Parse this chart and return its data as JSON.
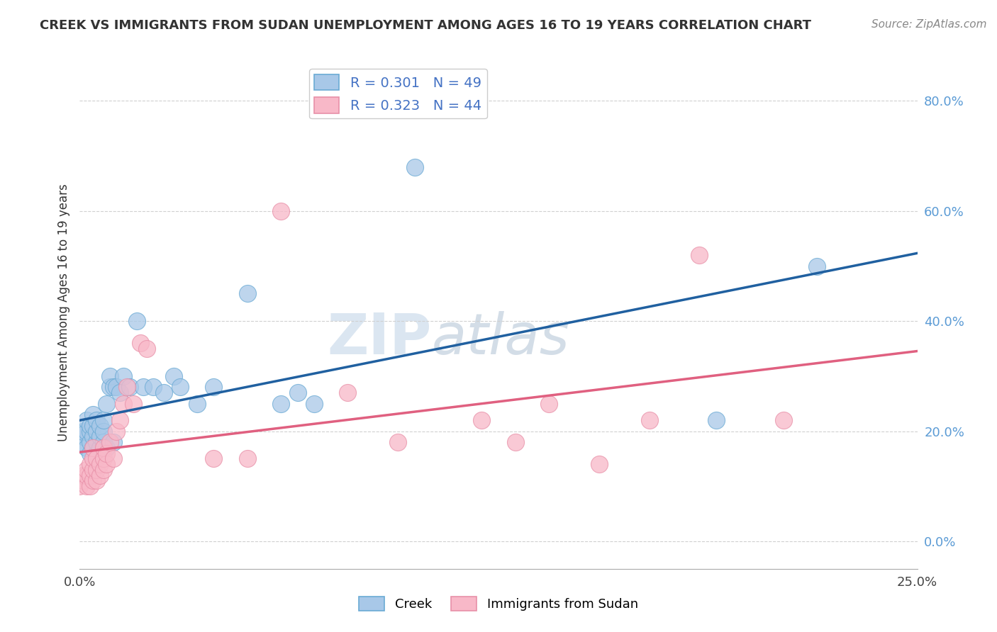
{
  "title": "CREEK VS IMMIGRANTS FROM SUDAN UNEMPLOYMENT AMONG AGES 16 TO 19 YEARS CORRELATION CHART",
  "source": "Source: ZipAtlas.com",
  "ylabel": "Unemployment Among Ages 16 to 19 years",
  "xlim": [
    0.0,
    0.25
  ],
  "ylim": [
    -0.05,
    0.88
  ],
  "yticks": [
    0.0,
    0.2,
    0.4,
    0.6,
    0.8
  ],
  "ytick_labels": [
    "0.0%",
    "20.0%",
    "40.0%",
    "60.0%",
    "80.0%"
  ],
  "xtick_labels_show": [
    "0.0%",
    "25.0%"
  ],
  "creek_color": "#a8c8e8",
  "creek_edge_color": "#6aaad4",
  "sudan_color": "#f8b8c8",
  "sudan_edge_color": "#e890a8",
  "creek_line_color": "#2060a0",
  "sudan_line_color": "#e06080",
  "sudan_dash_color": "#e0a0b0",
  "legend_creek_color": "#a8c8e8",
  "legend_sudan_color": "#f8b8c8",
  "watermark": "ZIPatlas",
  "creek_x": [
    0.0,
    0.001,
    0.001,
    0.002,
    0.002,
    0.002,
    0.003,
    0.003,
    0.003,
    0.003,
    0.004,
    0.004,
    0.004,
    0.004,
    0.005,
    0.005,
    0.005,
    0.005,
    0.006,
    0.006,
    0.006,
    0.007,
    0.007,
    0.007,
    0.008,
    0.008,
    0.009,
    0.009,
    0.01,
    0.01,
    0.011,
    0.012,
    0.013,
    0.015,
    0.017,
    0.019,
    0.022,
    0.025,
    0.028,
    0.03,
    0.035,
    0.04,
    0.05,
    0.06,
    0.065,
    0.07,
    0.1,
    0.19,
    0.22
  ],
  "creek_y": [
    0.18,
    0.19,
    0.2,
    0.17,
    0.2,
    0.22,
    0.16,
    0.18,
    0.2,
    0.21,
    0.17,
    0.19,
    0.21,
    0.23,
    0.16,
    0.18,
    0.2,
    0.22,
    0.17,
    0.19,
    0.21,
    0.18,
    0.2,
    0.22,
    0.17,
    0.25,
    0.28,
    0.3,
    0.18,
    0.28,
    0.28,
    0.27,
    0.3,
    0.28,
    0.4,
    0.28,
    0.28,
    0.27,
    0.3,
    0.28,
    0.25,
    0.28,
    0.45,
    0.25,
    0.27,
    0.25,
    0.68,
    0.22,
    0.5
  ],
  "sudan_x": [
    0.0,
    0.001,
    0.001,
    0.002,
    0.002,
    0.002,
    0.003,
    0.003,
    0.003,
    0.004,
    0.004,
    0.004,
    0.004,
    0.005,
    0.005,
    0.005,
    0.006,
    0.006,
    0.007,
    0.007,
    0.007,
    0.008,
    0.008,
    0.009,
    0.01,
    0.011,
    0.012,
    0.013,
    0.014,
    0.016,
    0.018,
    0.02,
    0.04,
    0.05,
    0.06,
    0.08,
    0.095,
    0.12,
    0.13,
    0.14,
    0.155,
    0.17,
    0.185,
    0.21
  ],
  "sudan_y": [
    0.1,
    0.11,
    0.12,
    0.1,
    0.12,
    0.13,
    0.1,
    0.12,
    0.14,
    0.11,
    0.13,
    0.15,
    0.17,
    0.11,
    0.13,
    0.15,
    0.12,
    0.14,
    0.13,
    0.15,
    0.17,
    0.14,
    0.16,
    0.18,
    0.15,
    0.2,
    0.22,
    0.25,
    0.28,
    0.25,
    0.36,
    0.35,
    0.15,
    0.15,
    0.6,
    0.27,
    0.18,
    0.22,
    0.18,
    0.25,
    0.14,
    0.22,
    0.52,
    0.22
  ]
}
